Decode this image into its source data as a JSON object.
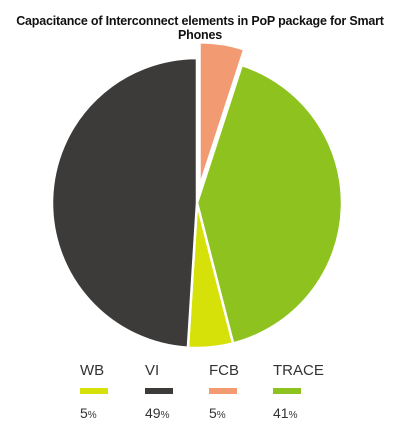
{
  "chart_data": {
    "type": "pie",
    "title": "Capacitance of Interconnect elements in PoP package for Smart Phones",
    "slices": [
      {
        "label": "WB",
        "value": 5,
        "display": "5",
        "unit": "%",
        "color": "#d6e10a"
      },
      {
        "label": "VI",
        "value": 49,
        "display": "49",
        "unit": "%",
        "color": "#3d3a3a"
      },
      {
        "label": "FCB",
        "value": 5,
        "display": "5",
        "unit": "%",
        "color": "#f29a72",
        "exploded": true
      },
      {
        "label": "TRACE",
        "value": 41,
        "display": "41",
        "unit": "%",
        "color": "#8ec21f"
      }
    ],
    "legend_position": "bottom"
  }
}
